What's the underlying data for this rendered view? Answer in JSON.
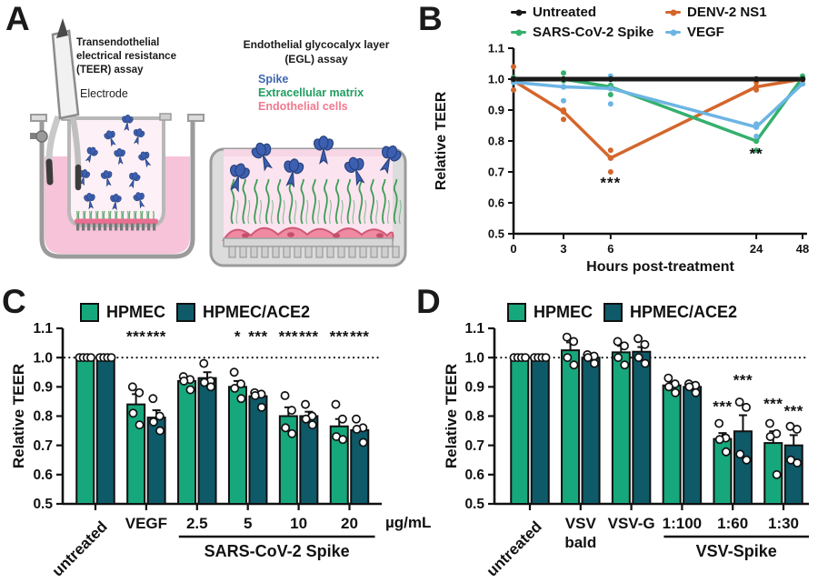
{
  "panel_labels": {
    "A": "A",
    "B": "B",
    "C": "C",
    "D": "D"
  },
  "panelA": {
    "teer_title": "Transendothelial\nelectrical resistance\n(TEER) assay",
    "electrode_label": "Electrode",
    "egl_title": "Endothelial glycocalyx layer\n(EGL) assay",
    "legend": {
      "spike": {
        "label": "Spike",
        "color": "#3f66b0"
      },
      "ecm": {
        "label": "Extracellular matrix",
        "color": "#1f9e60"
      },
      "cells": {
        "label": "Endothelial cells",
        "color": "#f2798f"
      }
    }
  },
  "chart_data": [
    {
      "panel": "B",
      "type": "line",
      "xlabel": "Hours post-treatment",
      "ylabel": "Relative TEER",
      "ylim": [
        0.5,
        1.1
      ],
      "yticks": [
        0.5,
        0.6,
        0.7,
        0.8,
        0.9,
        1.0,
        1.1
      ],
      "x": [
        0,
        3,
        6,
        24,
        48
      ],
      "x_positions": [
        0,
        0.173,
        0.336,
        0.84,
        1.0
      ],
      "legend_position": "top",
      "grid": false,
      "series": [
        {
          "name": "Untreated",
          "color": "#1a1a1a",
          "width": 5,
          "values": [
            1.0,
            1.0,
            1.0,
            1.0,
            1.0
          ],
          "dots": [
            [
              0,
              1.0
            ],
            [
              1,
              1.0
            ],
            [
              2,
              1.0
            ],
            [
              3,
              1.0
            ],
            [
              4,
              1.0
            ]
          ]
        },
        {
          "name": "DENV-2 NS1",
          "color": "#d4662c",
          "width": 3.5,
          "values": [
            0.995,
            0.895,
            0.745,
            0.975,
            1.0
          ],
          "dots": [
            [
              0,
              1.04
            ],
            [
              0,
              1.0
            ],
            [
              0,
              0.965
            ],
            [
              1,
              0.9
            ],
            [
              1,
              0.87
            ],
            [
              2,
              0.77
            ],
            [
              2,
              0.7
            ],
            [
              3,
              0.99
            ],
            [
              3,
              0.965
            ],
            [
              4,
              0.995
            ]
          ]
        },
        {
          "name": "SARS-CoV-2 Spike",
          "color": "#35b06e",
          "width": 3.5,
          "values": [
            1.0,
            1.0,
            0.975,
            0.8,
            1.005
          ],
          "dots": [
            [
              0,
              1.005
            ],
            [
              1,
              1.02
            ],
            [
              1,
              0.995
            ],
            [
              2,
              0.98
            ],
            [
              2,
              0.95
            ],
            [
              3,
              0.77
            ],
            [
              4,
              1.01
            ]
          ]
        },
        {
          "name": "VEGF",
          "color": "#6cb5e4",
          "width": 3.5,
          "values": [
            0.99,
            0.975,
            0.97,
            0.845,
            0.985
          ],
          "dots": [
            [
              0,
              0.99
            ],
            [
              1,
              0.93
            ],
            [
              2,
              1.01
            ],
            [
              2,
              0.92
            ],
            [
              3,
              0.855
            ],
            [
              3,
              0.815
            ],
            [
              4,
              0.985
            ]
          ]
        }
      ],
      "annotations": [
        {
          "text": "***",
          "x": 6,
          "y": 0.648
        },
        {
          "text": "**",
          "x": 24,
          "y": 0.742
        }
      ]
    },
    {
      "panel": "C",
      "type": "bar",
      "ylabel": "Relative TEER",
      "ylim": [
        0.5,
        1.1
      ],
      "yticks": [
        0.5,
        0.6,
        0.7,
        0.8,
        0.9,
        1.0,
        1.1
      ],
      "ref_line": 1.0,
      "unit_label": "µg/mL",
      "legend": [
        {
          "label": "HPMEC",
          "color": "#17a77c"
        },
        {
          "label": "HPMEC/ACE2",
          "color": "#0e5a69"
        }
      ],
      "groups": [
        {
          "label": "untreated",
          "rotate": true,
          "bars": [
            {
              "mean": 1.0,
              "err": 0.005,
              "points": [
                1.0,
                1.0,
                1.0,
                1.0
              ]
            },
            {
              "mean": 1.0,
              "err": 0.005,
              "points": [
                1.0,
                1.0,
                1.0,
                1.0
              ]
            }
          ]
        },
        {
          "label": "VEGF",
          "bars": [
            {
              "mean": 0.84,
              "err": 0.035,
              "points": [
                0.9,
                0.88,
                0.81,
                0.77
              ]
            },
            {
              "mean": 0.795,
              "err": 0.025,
              "points": [
                0.86,
                0.8,
                0.78,
                0.75
              ]
            }
          ]
        },
        {
          "label": "2.5",
          "bars": [
            {
              "mean": 0.92,
              "err": 0.012,
              "points": [
                0.935,
                0.925,
                0.92,
                0.89
              ]
            },
            {
              "mean": 0.93,
              "err": 0.02,
              "points": [
                0.98,
                0.92,
                0.915,
                0.9
              ]
            }
          ]
        },
        {
          "label": "5",
          "bars": [
            {
              "mean": 0.9,
              "err": 0.02,
              "points": [
                0.95,
                0.91,
                0.895,
                0.86
              ]
            },
            {
              "mean": 0.868,
              "err": 0.01,
              "points": [
                0.88,
                0.875,
                0.87,
                0.83
              ]
            }
          ]
        },
        {
          "label": "10",
          "bars": [
            {
              "mean": 0.8,
              "err": 0.03,
              "points": [
                0.87,
                0.82,
                0.76,
                0.74
              ]
            },
            {
              "mean": 0.8,
              "err": 0.015,
              "points": [
                0.84,
                0.8,
                0.79,
                0.77
              ]
            }
          ]
        },
        {
          "label": "20",
          "bars": [
            {
              "mean": 0.765,
              "err": 0.025,
              "points": [
                0.84,
                0.79,
                0.73,
                0.72
              ]
            },
            {
              "mean": 0.752,
              "err": 0.012,
              "points": [
                0.79,
                0.76,
                0.755,
                0.71
              ]
            }
          ]
        }
      ],
      "sig_y": 1.055,
      "sig": [
        {
          "g": 1,
          "b": 0,
          "text": "***"
        },
        {
          "g": 1,
          "b": 1,
          "text": "***"
        },
        {
          "g": 3,
          "b": 0,
          "text": "*"
        },
        {
          "g": 3,
          "b": 1,
          "text": "***"
        },
        {
          "g": 4,
          "b": 0,
          "text": "***"
        },
        {
          "g": 4,
          "b": 1,
          "text": "***"
        },
        {
          "g": 5,
          "b": 0,
          "text": "***"
        },
        {
          "g": 5,
          "b": 1,
          "text": "***"
        }
      ],
      "span": {
        "from": 2,
        "to": 5,
        "label": "SARS-CoV-2 Spike"
      }
    },
    {
      "panel": "D",
      "type": "bar",
      "ylabel": "Relative TEER",
      "ylim": [
        0.5,
        1.1
      ],
      "yticks": [
        0.5,
        0.6,
        0.7,
        0.8,
        0.9,
        1.0,
        1.1
      ],
      "ref_line": 1.0,
      "legend": [
        {
          "label": "HPMEC",
          "color": "#17a77c"
        },
        {
          "label": "HPMEC/ACE2",
          "color": "#0e5a69"
        }
      ],
      "groups": [
        {
          "label": "untreated",
          "rotate": true,
          "bars": [
            {
              "mean": 1.0,
              "err": 0.005,
              "points": [
                1.0,
                1.0,
                1.0,
                1.0
              ]
            },
            {
              "mean": 1.0,
              "err": 0.005,
              "points": [
                1.0,
                1.0,
                1.0,
                1.0
              ]
            }
          ]
        },
        {
          "label": "VSV\nbald",
          "bars": [
            {
              "mean": 1.025,
              "err": 0.027,
              "points": [
                1.07,
                1.055,
                1.0,
                0.975
              ]
            },
            {
              "mean": 1.0,
              "err": 0.008,
              "points": [
                1.01,
                1.005,
                1.0,
                0.98
              ]
            }
          ]
        },
        {
          "label": "VSV-G",
          "bars": [
            {
              "mean": 1.018,
              "err": 0.022,
              "points": [
                1.055,
                1.04,
                1.0,
                0.975
              ]
            },
            {
              "mean": 1.02,
              "err": 0.016,
              "points": [
                1.065,
                1.045,
                1.0,
                0.98
              ]
            }
          ]
        },
        {
          "label": "1:100",
          "bars": [
            {
              "mean": 0.905,
              "err": 0.012,
              "points": [
                0.93,
                0.91,
                0.9,
                0.88
              ]
            },
            {
              "mean": 0.9,
              "err": 0.007,
              "points": [
                0.91,
                0.905,
                0.9,
                0.88
              ]
            }
          ]
        },
        {
          "label": "1:60",
          "bars": [
            {
              "mean": 0.722,
              "err": 0.02,
              "points": [
                0.775,
                0.725,
                0.72,
                0.678
              ]
            },
            {
              "mean": 0.748,
              "err": 0.055,
              "points": [
                0.848,
                0.83,
                0.67,
                0.65
              ]
            }
          ]
        },
        {
          "label": "1:30",
          "bars": [
            {
              "mean": 0.708,
              "err": 0.04,
              "points": [
                0.775,
                0.74,
                0.73,
                0.6
              ]
            },
            {
              "mean": 0.7,
              "err": 0.035,
              "points": [
                0.765,
                0.755,
                0.65,
                0.64
              ]
            }
          ]
        }
      ],
      "sig": [
        {
          "g": 4,
          "b": 0,
          "text": "***",
          "y": 0.815
        },
        {
          "g": 4,
          "b": 1,
          "text": "***",
          "y": 0.905
        },
        {
          "g": 5,
          "b": 0,
          "text": "***",
          "y": 0.825
        },
        {
          "g": 5,
          "b": 1,
          "text": "***",
          "y": 0.8
        }
      ],
      "span": {
        "from": 3,
        "to": 5,
        "label": "VSV-Spike"
      }
    }
  ]
}
